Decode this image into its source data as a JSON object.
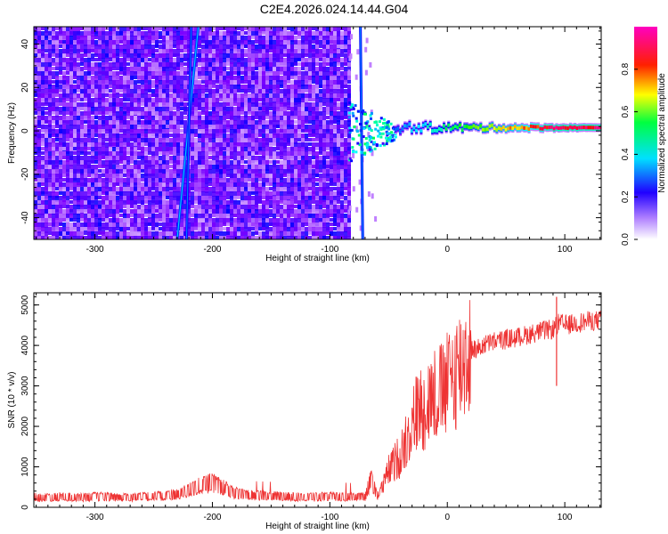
{
  "title": "C2E4.2026.024.14.44.G04",
  "chart_data": [
    {
      "type": "heatmap",
      "xlabel": "Height of straight line (km)",
      "ylabel": "Frequency (Hz)",
      "xlim": [
        -352,
        131
      ],
      "ylim": [
        -50,
        48
      ],
      "x_ticks": [
        -300,
        -200,
        -100,
        0,
        100
      ],
      "x_tick_labels": [
        "-300",
        "-200",
        "-100",
        "0",
        "100"
      ],
      "y_ticks": [
        -40,
        -20,
        0,
        20,
        40
      ],
      "y_tick_labels": [
        "-40",
        "-20",
        "0",
        "20",
        "40"
      ],
      "colorbar": {
        "label": "Normalized spectral amplitude",
        "range": [
          0,
          1
        ],
        "ticks": [
          0.0,
          0.2,
          0.4,
          0.6,
          0.8
        ],
        "tick_labels": [
          "0.0",
          "0.2",
          "0.4",
          "0.6",
          "0.8"
        ],
        "colormap": [
          "#ffffff",
          "#8000ff",
          "#0000ff",
          "#00ffff",
          "#00ff00",
          "#ffff00",
          "#ff0000",
          "#ff00c0"
        ]
      },
      "noise_region_x": [
        -352,
        -85
      ],
      "noise_amplitude": 0.12,
      "vertical_streaks": [
        {
          "x_top": -212,
          "x_bottom": -230,
          "amplitude": 0.25
        },
        {
          "x_top": -218,
          "x_bottom": -222,
          "amplitude": 0.2
        },
        {
          "x_top": -74,
          "x_bottom": -72,
          "amplitude": 0.22
        }
      ],
      "transition_region_x": [
        -85,
        -45
      ],
      "carrier": {
        "x_start": -45,
        "x_end": 131,
        "frequency": 1.5,
        "amplitude_start": 0.3,
        "amplitude_end": 0.95
      }
    },
    {
      "type": "line",
      "xlabel": "Height of straight line (km)",
      "ylabel": "SNR (10 * v/v)",
      "xlim": [
        -352,
        131
      ],
      "ylim": [
        0,
        5300
      ],
      "x_ticks": [
        -300,
        -200,
        -100,
        0,
        100
      ],
      "x_tick_labels": [
        "-300",
        "-200",
        "-100",
        "0",
        "100"
      ],
      "y_ticks": [
        0,
        1000,
        2000,
        3000,
        4000,
        5000
      ],
      "y_tick_labels": [
        "0",
        "1000",
        "2000",
        "3000",
        "4000",
        "5000"
      ],
      "color": "#ee3333",
      "series": [
        {
          "name": "SNR",
          "x": [
            -350,
            -340,
            -330,
            -320,
            -310,
            -300,
            -290,
            -280,
            -270,
            -260,
            -250,
            -240,
            -230,
            -220,
            -210,
            -200,
            -190,
            -180,
            -170,
            -160,
            -150,
            -140,
            -130,
            -120,
            -110,
            -100,
            -90,
            -80,
            -70,
            -65,
            -60,
            -55,
            -50,
            -45,
            -40,
            -35,
            -30,
            -25,
            -20,
            -15,
            -10,
            -5,
            0,
            5,
            10,
            15,
            20,
            25,
            30,
            40,
            50,
            60,
            70,
            80,
            90,
            95,
            100,
            110,
            120,
            130
          ],
          "values": [
            250,
            240,
            260,
            250,
            240,
            270,
            260,
            250,
            240,
            260,
            270,
            290,
            320,
            420,
            560,
            600,
            470,
            350,
            300,
            290,
            280,
            270,
            260,
            250,
            260,
            270,
            260,
            250,
            270,
            700,
            300,
            500,
            900,
            1100,
            1300,
            1700,
            2100,
            2400,
            2500,
            2700,
            2800,
            2850,
            3000,
            3300,
            3450,
            3700,
            3900,
            3900,
            4000,
            4100,
            4150,
            4200,
            4280,
            4350,
            4400,
            4550,
            4500,
            4550,
            4600,
            4620
          ]
        }
      ],
      "annotations": [
        {
          "x": 93,
          "y_min": 3000,
          "y_max": 5200
        }
      ]
    }
  ]
}
